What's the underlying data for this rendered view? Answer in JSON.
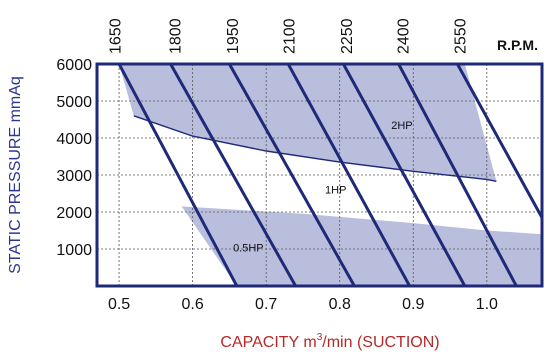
{
  "chart_data": {
    "type": "line",
    "title": "",
    "xlabel_main": "CAPACITY m",
    "xlabel_sup": "3",
    "xlabel_rest": "/min (SUCTION)",
    "ylabel": "STATIC PRESSURE mmAq",
    "top_axis_label": "R.P.M.",
    "xlim": [
      0.47,
      1.075
    ],
    "ylim": [
      0,
      6000
    ],
    "x_ticks": [
      0.5,
      0.6,
      0.7,
      0.8,
      0.9,
      1.0
    ],
    "x_tick_labels": [
      "0.5",
      "0.6",
      "0.7",
      "0.8",
      "0.9",
      "1.0"
    ],
    "y_ticks": [
      1000,
      2000,
      3000,
      4000,
      5000,
      6000
    ],
    "y_tick_labels": [
      "1000",
      "2000",
      "3000",
      "4000",
      "5000",
      "6000"
    ],
    "rpm_ticks": [
      1650,
      1800,
      1950,
      2100,
      2250,
      2400,
      2550
    ],
    "rpm_tick_labels": [
      "1650",
      "1800",
      "1950",
      "2100",
      "2250",
      "2400",
      "2550"
    ],
    "rpm_tick_x": [
      0.4935,
      0.5755,
      0.6535,
      0.7305,
      0.8085,
      0.8855,
      0.9625
    ],
    "grid": true,
    "series": [
      {
        "values": [
          [
            0.5,
            6000
          ],
          [
            0.66,
            0
          ]
        ]
      },
      {
        "values": [
          [
            0.57,
            6000
          ],
          [
            0.74,
            0
          ]
        ]
      },
      {
        "values": [
          [
            0.65,
            6000
          ],
          [
            0.82,
            0
          ]
        ]
      },
      {
        "values": [
          [
            0.73,
            6000
          ],
          [
            0.895,
            0
          ]
        ]
      },
      {
        "values": [
          [
            0.805,
            6000
          ],
          [
            0.97,
            0
          ]
        ]
      },
      {
        "values": [
          [
            0.88,
            6000
          ],
          [
            1.04,
            0
          ]
        ]
      },
      {
        "values": [
          [
            0.96,
            6000
          ],
          [
            1.075,
            1850
          ]
        ]
      }
    ],
    "power_curves": [
      {
        "label": "2HP",
        "values": [
          [
            0.52,
            4600
          ],
          [
            0.6,
            4050
          ],
          [
            0.7,
            3650
          ],
          [
            0.8,
            3350
          ],
          [
            0.9,
            3100
          ],
          [
            1.0,
            2880
          ],
          [
            1.013,
            2830
          ]
        ]
      }
    ],
    "shaded_regions": [
      {
        "polygon": [
          [
            0.5,
            6000
          ],
          [
            0.97,
            6000
          ],
          [
            1.013,
            2830
          ],
          [
            0.9,
            3100
          ],
          [
            0.8,
            3350
          ],
          [
            0.7,
            3650
          ],
          [
            0.6,
            4050
          ],
          [
            0.52,
            4600
          ]
        ]
      },
      {
        "polygon": [
          [
            0.585,
            2150
          ],
          [
            0.75,
            1950
          ],
          [
            0.9,
            1700
          ],
          [
            1.0,
            1500
          ],
          [
            1.075,
            1400
          ],
          [
            1.075,
            0
          ],
          [
            0.66,
            0
          ]
        ]
      }
    ],
    "annotations": [
      {
        "text": "2HP",
        "x": 0.87,
        "y": 4250
      },
      {
        "text": "1HP",
        "x": 0.78,
        "y": 2500
      },
      {
        "text": "0.5HP",
        "x": 0.655,
        "y": 930
      }
    ]
  }
}
